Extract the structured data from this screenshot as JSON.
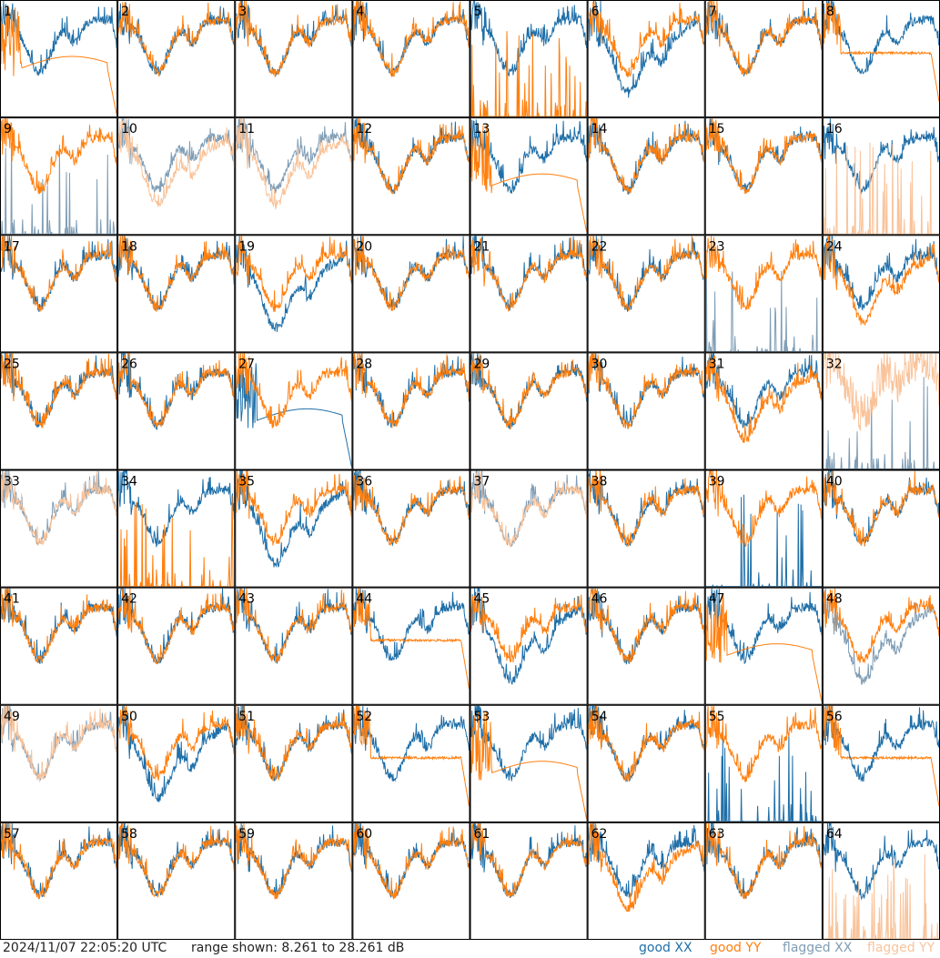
{
  "chart_data": {
    "type": "line",
    "grid": {
      "rows": 8,
      "cols": 8
    },
    "panel_labels": [
      "1",
      "2",
      "3",
      "4",
      "5",
      "6",
      "7",
      "8",
      "9",
      "10",
      "11",
      "12",
      "13",
      "14",
      "15",
      "16",
      "17",
      "18",
      "19",
      "20",
      "21",
      "22",
      "23",
      "24",
      "25",
      "26",
      "27",
      "28",
      "29",
      "30",
      "31",
      "32",
      "33",
      "34",
      "35",
      "36",
      "37",
      "38",
      "39",
      "40",
      "41",
      "42",
      "43",
      "44",
      "45",
      "46",
      "47",
      "48",
      "49",
      "50",
      "51",
      "52",
      "53",
      "54",
      "55",
      "56",
      "57",
      "58",
      "59",
      "60",
      "61",
      "62",
      "63",
      "64"
    ],
    "ylim": [
      8.261,
      28.261
    ],
    "yunit": "dB",
    "series": [
      {
        "name": "good XX",
        "color": "#1f6fa8"
      },
      {
        "name": "good YY",
        "color": "#ff7f0e"
      },
      {
        "name": "flagged XX",
        "color": "#7f9db5"
      },
      {
        "name": "flagged YY",
        "color": "#f9c39a"
      }
    ],
    "panel_styles": {
      "1": {
        "xx": "normal",
        "yy": "bandpass",
        "xx_flag": false,
        "yy_flag": false
      },
      "5": {
        "xx": "normal",
        "yy": "spikes",
        "xx_flag": false,
        "yy_flag": false
      },
      "6": {
        "xx": "lowlevel",
        "yy": "normal",
        "xx_flag": false,
        "yy_flag": false
      },
      "8": {
        "xx": "normal",
        "yy": "flat",
        "xx_flag": false,
        "yy_flag": false
      },
      "9": {
        "xx": "spikes",
        "yy": "normal",
        "xx_flag": true,
        "yy_flag": false
      },
      "10": {
        "xx": "normal",
        "yy": "deep",
        "xx_flag": true,
        "yy_flag": true
      },
      "11": {
        "xx": "normal",
        "yy": "deep",
        "xx_flag": true,
        "yy_flag": true
      },
      "13": {
        "xx": "normal",
        "yy": "bandpass",
        "xx_flag": false,
        "yy_flag": false
      },
      "16": {
        "xx": "normal",
        "yy": "spikes",
        "xx_flag": false,
        "yy_flag": true
      },
      "19": {
        "xx": "lowlevel",
        "yy": "normal",
        "xx_flag": false,
        "yy_flag": false
      },
      "23": {
        "xx": "spikes",
        "yy": "normal",
        "xx_flag": true,
        "yy_flag": false
      },
      "24": {
        "xx": "normal",
        "yy": "deep",
        "xx_flag": false,
        "yy_flag": false
      },
      "27": {
        "xx": "bandpass",
        "yy": "normal",
        "xx_flag": false,
        "yy_flag": false
      },
      "31": {
        "xx": "normal",
        "yy": "deep",
        "xx_flag": false,
        "yy_flag": false
      },
      "32": {
        "xx": "spikes",
        "yy": "noisy",
        "xx_flag": true,
        "yy_flag": true
      },
      "33": {
        "xx": "normal",
        "yy": "normal",
        "xx_flag": true,
        "yy_flag": true
      },
      "34": {
        "xx": "normal",
        "yy": "spikes",
        "xx_flag": false,
        "yy_flag": false
      },
      "35": {
        "xx": "lowlevel",
        "yy": "normal",
        "xx_flag": false,
        "yy_flag": false
      },
      "37": {
        "xx": "normal",
        "yy": "normal",
        "xx_flag": true,
        "yy_flag": true
      },
      "39": {
        "xx": "spikes",
        "yy": "normal",
        "xx_flag": false,
        "yy_flag": false
      },
      "44": {
        "xx": "normal",
        "yy": "flat",
        "xx_flag": false,
        "yy_flag": false
      },
      "45": {
        "xx": "lowlevel",
        "yy": "normal",
        "xx_flag": false,
        "yy_flag": false
      },
      "47": {
        "xx": "normal",
        "yy": "bandpass",
        "xx_flag": false,
        "yy_flag": false
      },
      "48": {
        "xx": "lowlevel",
        "yy": "normal",
        "xx_flag": true,
        "yy_flag": false
      },
      "49": {
        "xx": "normal",
        "yy": "normal",
        "xx_flag": true,
        "yy_flag": true
      },
      "50": {
        "xx": "lowlevel",
        "yy": "normal",
        "xx_flag": false,
        "yy_flag": false
      },
      "52": {
        "xx": "normal",
        "yy": "flat",
        "xx_flag": false,
        "yy_flag": false
      },
      "53": {
        "xx": "normal",
        "yy": "bandpass",
        "xx_flag": false,
        "yy_flag": false
      },
      "55": {
        "xx": "spikes",
        "yy": "normal",
        "xx_flag": false,
        "yy_flag": false
      },
      "56": {
        "xx": "normal",
        "yy": "flat",
        "xx_flag": false,
        "yy_flag": false
      },
      "62": {
        "xx": "normal",
        "yy": "deep",
        "xx_flag": false,
        "yy_flag": false
      },
      "63": {
        "xx": "normal",
        "yy": "normal",
        "xx_flag": false,
        "yy_flag": false
      },
      "64": {
        "xx": "normal",
        "yy": "spikes",
        "xx_flag": false,
        "yy_flag": true
      }
    }
  },
  "footer": {
    "timestamp": "2024/11/07 22:05:20 UTC",
    "range_text": "range shown: 8.261 to 28.261 dB",
    "legend": {
      "good_xx": "good XX",
      "good_yy": "good YY",
      "flagged_xx": "flagged XX",
      "flagged_yy": "flagged YY"
    }
  }
}
